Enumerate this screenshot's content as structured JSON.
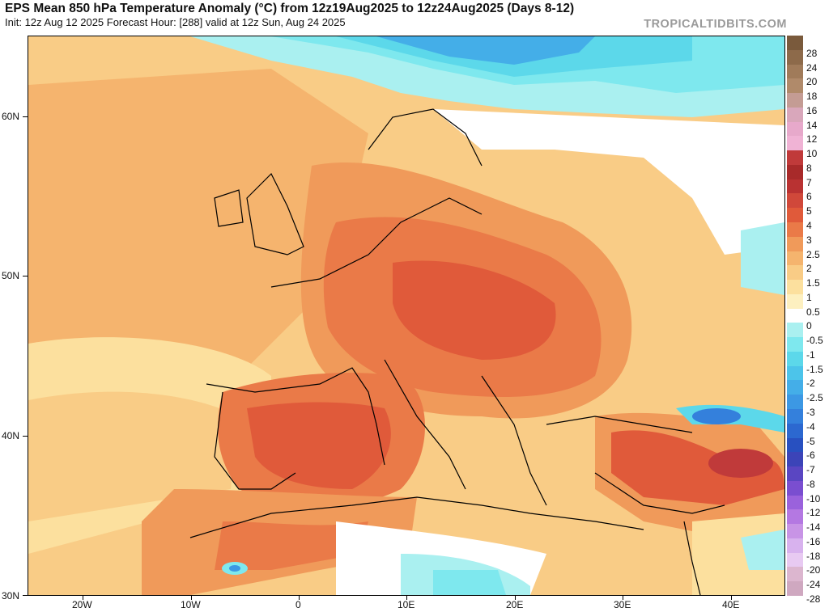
{
  "header": {
    "title": "EPS Mean 850 hPa Temperature Anomaly (°C) from 12z19Aug2025 to 12z24Aug2025 (Days 8-12)",
    "subtitle": "Init: 12z Aug 12 2025   Forecast Hour: [288]   valid at 12z Sun, Aug 24 2025",
    "brand": "TROPICALTIDBITS.COM"
  },
  "axes": {
    "lat_labels": [
      "60N",
      "50N",
      "40N",
      "30N"
    ],
    "lon_labels": [
      "20W",
      "10W",
      "0",
      "10E",
      "20E",
      "30E",
      "40E"
    ]
  },
  "colorbar": {
    "labels": [
      "28",
      "24",
      "20",
      "18",
      "16",
      "14",
      "12",
      "10",
      "8",
      "7",
      "6",
      "5",
      "4",
      "3",
      "2.5",
      "2",
      "1.5",
      "1",
      "0.5",
      "0",
      "-0.5",
      "-1",
      "-1.5",
      "-2",
      "-2.5",
      "-3",
      "-4",
      "-5",
      "-6",
      "-7",
      "-8",
      "-10",
      "-12",
      "-14",
      "-16",
      "-18",
      "-20",
      "-24",
      "-28"
    ],
    "colors": [
      "#7a5a3c",
      "#8d6a4a",
      "#a07b5a",
      "#b08a6a",
      "#c49c94",
      "#d9a7bb",
      "#e7a9cb",
      "#f0b3d5",
      "#c03a3a",
      "#a82a2a",
      "#b93232",
      "#d0483a",
      "#e05a3a",
      "#ea7a48",
      "#f09a5a",
      "#f5b46e",
      "#f9cc86",
      "#fce09e",
      "#fdf0c0",
      "#ffffff",
      "#aaf0f0",
      "#7ee8ee",
      "#5cd8ea",
      "#4cc4ea",
      "#44aee8",
      "#3c98e4",
      "#3480dc",
      "#2c68d0",
      "#2850c0",
      "#3c44b8",
      "#5a46c2",
      "#7a4ed0",
      "#9a62dc",
      "#b478e2",
      "#c894e6",
      "#d8b2ee",
      "#e8caf2",
      "#dcb6cf",
      "#cfa8c0"
    ]
  }
}
